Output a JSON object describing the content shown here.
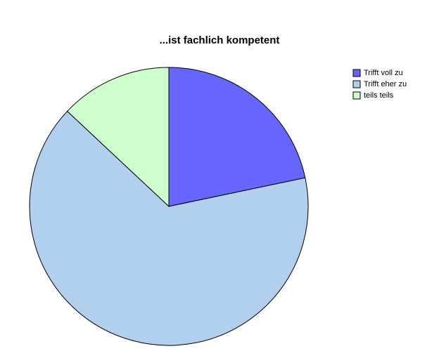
{
  "chart_data": {
    "type": "pie",
    "title": "...ist fachlich kompetent",
    "categories": [
      "Trifft voll zu",
      "Trifft eher zu",
      "teils teils"
    ],
    "values": [
      21.7,
      65.3,
      13.0
    ],
    "colors": [
      "#6666ff",
      "#b0d0ee",
      "#ccffcc"
    ]
  }
}
